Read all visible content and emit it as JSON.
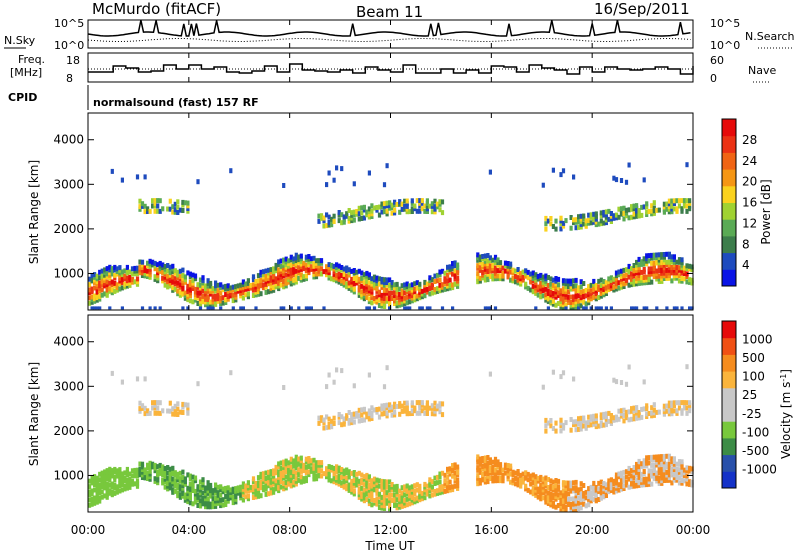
{
  "header": {
    "station": "McMurdo (fitACF)",
    "beam": "Beam 11",
    "date": "16/Sep/2011"
  },
  "noise_panel": {
    "left_label": "N.Sky",
    "right_label": "N.Search",
    "left_ticks": [
      "10^5",
      "10^0"
    ],
    "right_ticks": [
      "10^5",
      "10^0"
    ]
  },
  "freq_panel": {
    "left_label_1": "Freq.",
    "left_label_2": "[MHz]",
    "right_label": "Nave",
    "left_ticks": [
      "18",
      "8"
    ],
    "right_ticks": [
      "60",
      "0"
    ]
  },
  "cpid": {
    "label": "CPID",
    "text": "normalsound (fast) 157 RF"
  },
  "colors": {
    "power": [
      "#0a14e6",
      "#1e4bbe",
      "#3c7d4b",
      "#5aaa55",
      "#a0d232",
      "#fad21e",
      "#f59614",
      "#f06414",
      "#eb3214",
      "#e60a0a"
    ],
    "velocity": [
      "#e60a0a",
      "#f05014",
      "#f58c1e",
      "#fab43c",
      "#c8c8c8",
      "#c8c8c8",
      "#78c83c",
      "#3c8c46",
      "#2850aa",
      "#1432c8"
    ]
  },
  "chart_data": [
    {
      "type": "heatmap",
      "name": "power",
      "ylabel": "Slant Range [km]",
      "ylim": [
        180,
        4600
      ],
      "yticks": [
        "1000",
        "2000",
        "3000",
        "4000"
      ],
      "xlim_hours": [
        0,
        24
      ],
      "colorbar_label": "Power [dB]",
      "colorbar_ticks": [
        "4",
        "8",
        "12",
        "16",
        "20",
        "24",
        "28"
      ],
      "colorbar_range": [
        0,
        32
      ]
    },
    {
      "type": "heatmap",
      "name": "velocity",
      "ylabel": "Slant Range [km]",
      "ylim": [
        180,
        4600
      ],
      "yticks": [
        "1000",
        "2000",
        "3000",
        "4000"
      ],
      "xlim_hours": [
        0,
        24
      ],
      "colorbar_label": "Velocity [m s^-1]",
      "colorbar_ticks": [
        "1000",
        "500",
        "100",
        "25",
        "-25",
        "-100",
        "-500",
        "-1000"
      ]
    }
  ],
  "xaxis": {
    "ticks": [
      "00:00",
      "04:00",
      "08:00",
      "12:00",
      "16:00",
      "20:00",
      "00:00"
    ],
    "label": "Time UT"
  }
}
